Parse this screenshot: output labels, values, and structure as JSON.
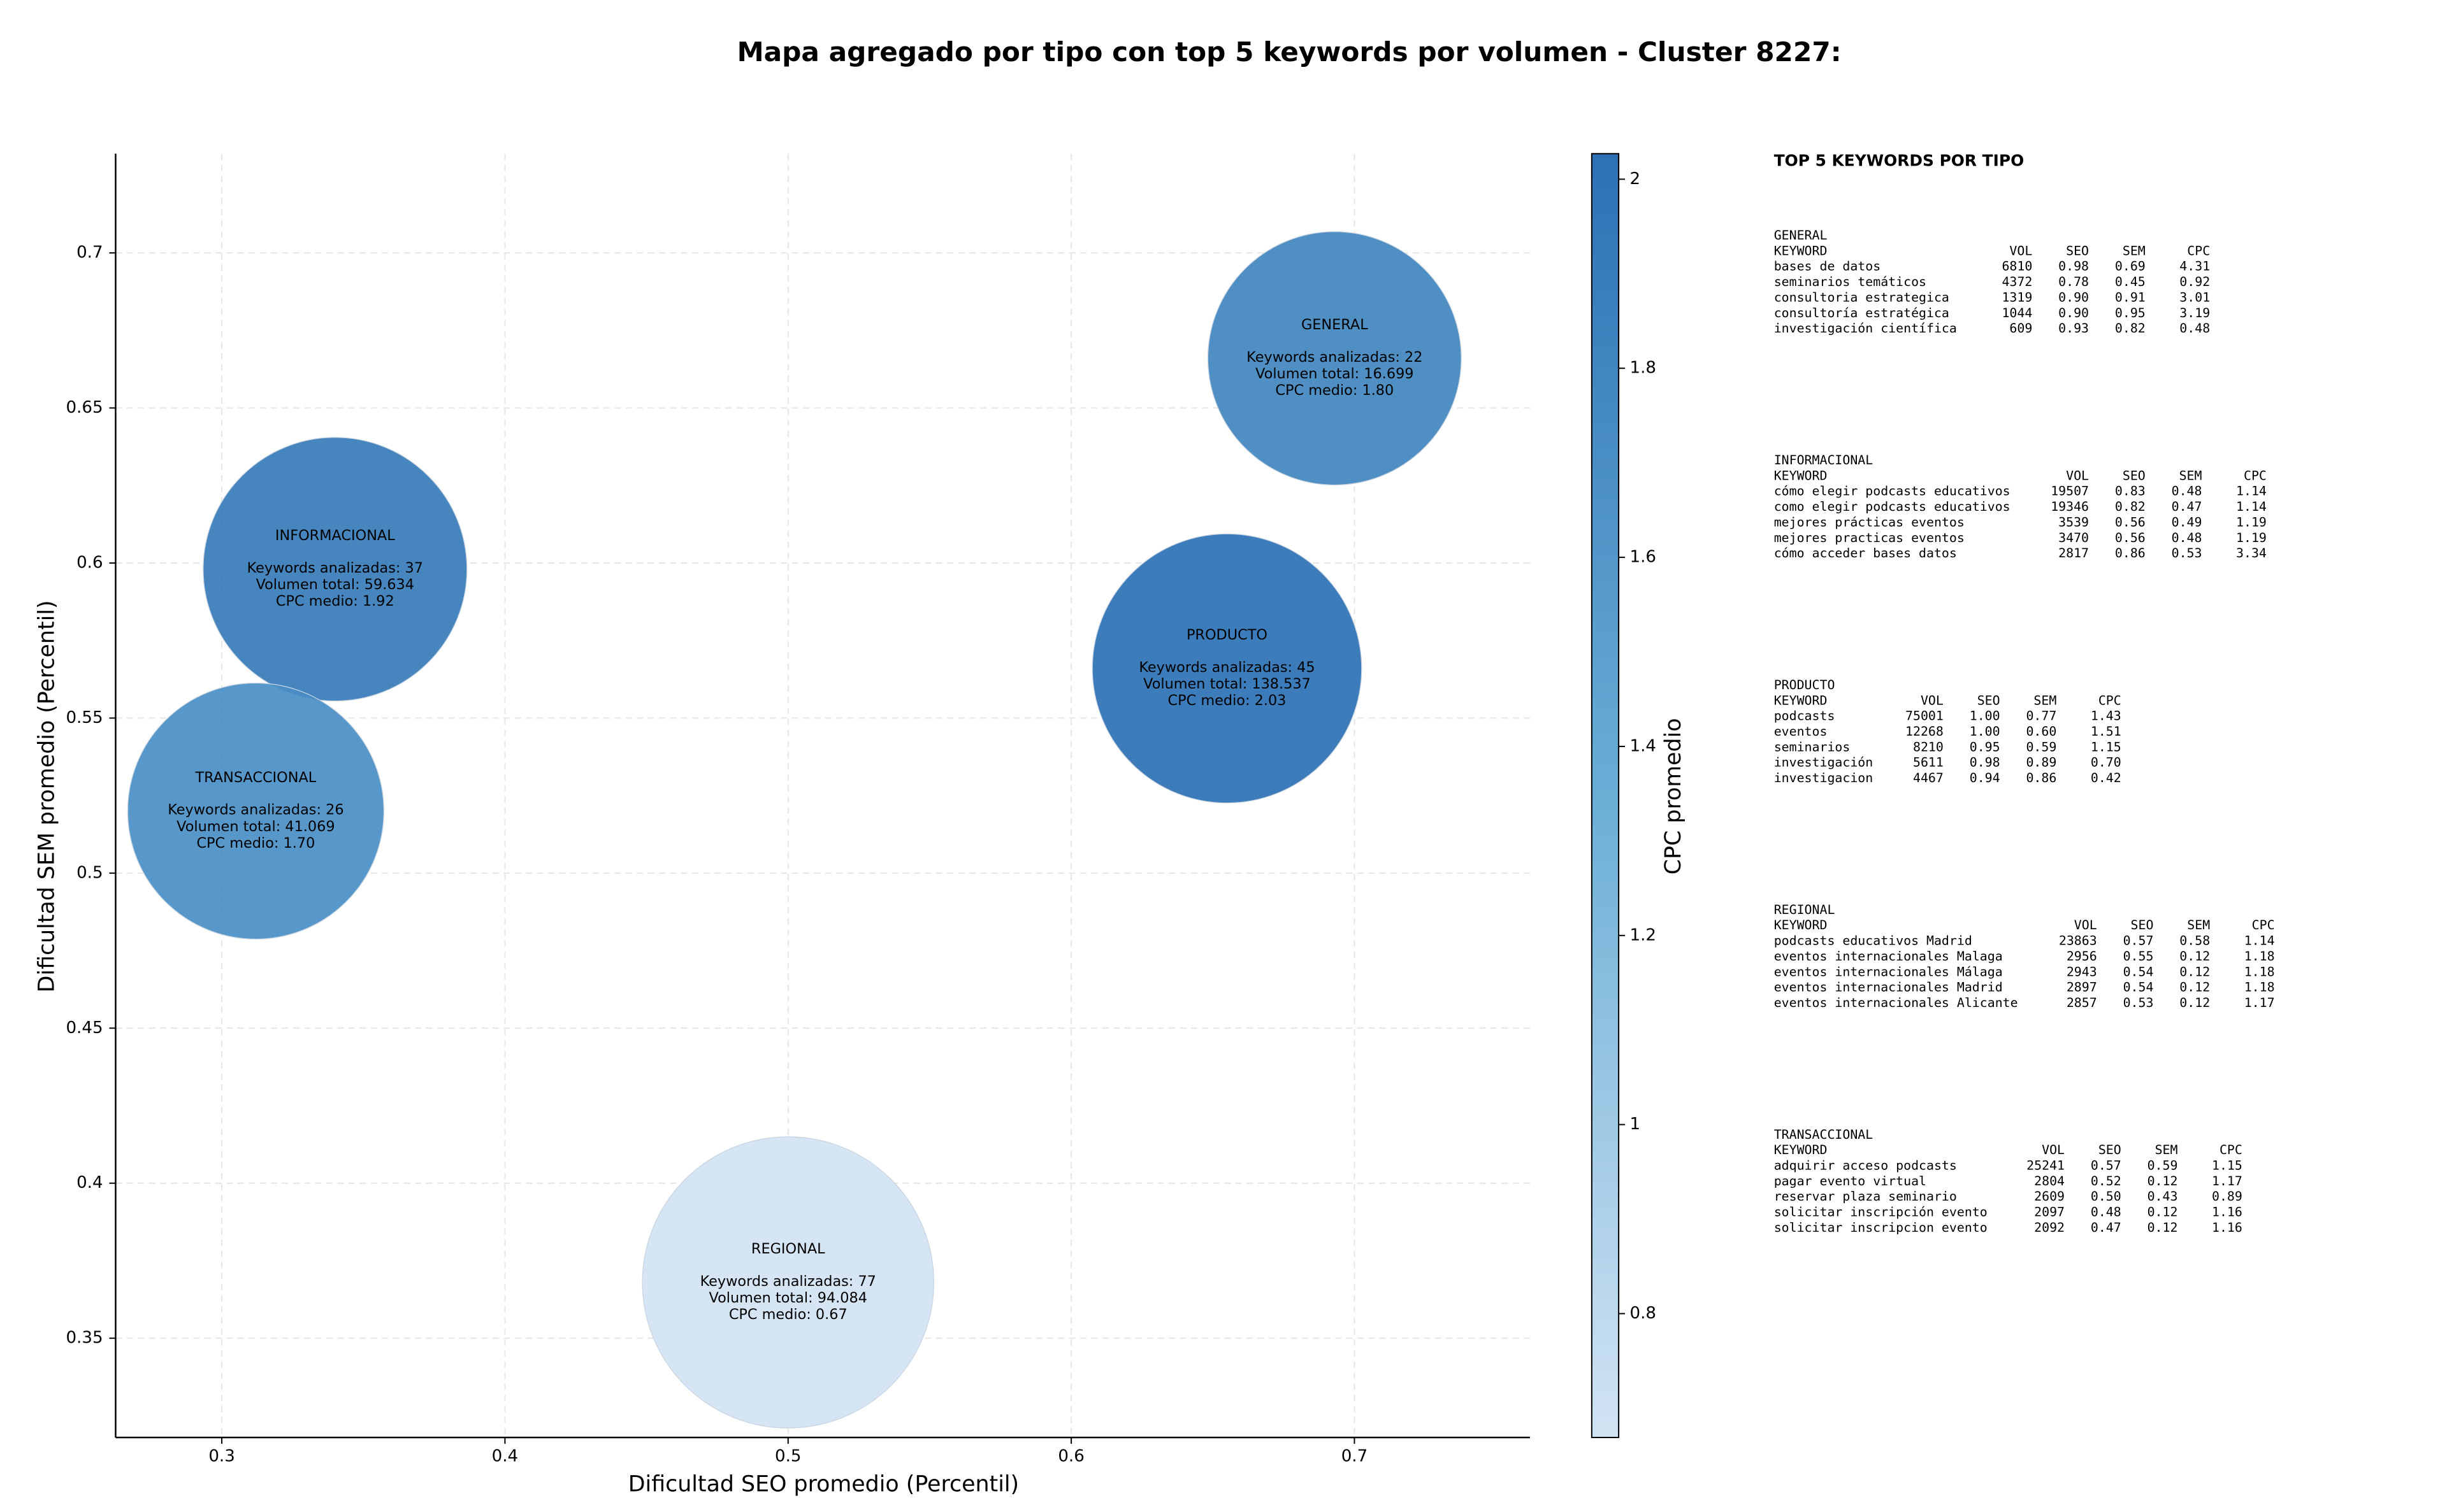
{
  "chart_data": {
    "type": "bubble",
    "title": "Mapa agregado por tipo con top 5 keywords por volumen - Cluster 8227:",
    "x_label": "Dificultad SEO promedio (Percentil)",
    "y_label": "Dificultad SEM promedio (Percentil)",
    "labels": [
      "GENERAL",
      "INFORMACIONAL",
      "PRODUCTO",
      "TRANSACCIONAL",
      "REGIONAL"
    ],
    "x": [
      0.693,
      0.34,
      0.655,
      0.312,
      0.5
    ],
    "values": [
      0.666,
      0.598,
      0.566,
      0.52,
      0.368
    ],
    "sizes": [
      22,
      37,
      45,
      26,
      77
    ],
    "color_values": [
      1.8,
      1.92,
      2.03,
      1.7,
      0.67
    ],
    "annotations": [
      [
        "Keywords analizadas: 22",
        "Volumen total: 16.699",
        "CPC medio: 1.80"
      ],
      [
        "Keywords analizadas: 37",
        "Volumen total: 59.634",
        "CPC medio: 1.92"
      ],
      [
        "Keywords analizadas: 45",
        "Volumen total: 138.537",
        "CPC medio: 2.03"
      ],
      [
        "Keywords analizadas: 26",
        "Volumen total: 41.069",
        "CPC medio: 1.70"
      ],
      [
        "Keywords analizadas: 77",
        "Volumen total: 94.084",
        "CPC medio: 0.67"
      ]
    ],
    "xlim": [
      0.2625,
      0.762
    ],
    "xticks": [
      0.3,
      0.4,
      0.5,
      0.6,
      0.7
    ],
    "ylim": [
      0.318,
      0.732
    ],
    "yticks": [
      0.35,
      0.4,
      0.45,
      0.5,
      0.55,
      0.6,
      0.65,
      0.7
    ],
    "grid": true,
    "colorbar": {
      "label": "CPC promedio",
      "lim": [
        0.669,
        2.027
      ],
      "ticks": [
        0.8,
        1.0,
        1.2,
        1.4,
        1.6,
        1.8,
        2.0
      ],
      "colors": [
        "#d2e3f3",
        "#6aaed6",
        "#2c71b4"
      ]
    }
  },
  "keyword_panel": {
    "title": "TOP 5 KEYWORDS POR TIPO",
    "columns": [
      "KEYWORD",
      "VOL",
      "SEO",
      "SEM",
      "CPC"
    ],
    "groups": [
      {
        "name": "GENERAL",
        "rows": [
          [
            "bases de datos",
            "6810",
            "0.98",
            "0.69",
            "4.31"
          ],
          [
            "seminarios temáticos",
            "4372",
            "0.78",
            "0.45",
            "0.92"
          ],
          [
            "consultoria estrategica",
            "1319",
            "0.90",
            "0.91",
            "3.01"
          ],
          [
            "consultoría estratégica",
            "1044",
            "0.90",
            "0.95",
            "3.19"
          ],
          [
            "investigación científica",
            "609",
            "0.93",
            "0.82",
            "0.48"
          ]
        ]
      },
      {
        "name": "INFORMACIONAL",
        "rows": [
          [
            "cómo elegir podcasts educativos",
            "19507",
            "0.83",
            "0.48",
            "1.14"
          ],
          [
            "como elegir podcasts educativos",
            "19346",
            "0.82",
            "0.47",
            "1.14"
          ],
          [
            "mejores prácticas eventos",
            "3539",
            "0.56",
            "0.49",
            "1.19"
          ],
          [
            "mejores practicas eventos",
            "3470",
            "0.56",
            "0.48",
            "1.19"
          ],
          [
            "cómo acceder bases datos",
            "2817",
            "0.86",
            "0.53",
            "3.34"
          ]
        ]
      },
      {
        "name": "PRODUCTO",
        "rows": [
          [
            "podcasts",
            "75001",
            "1.00",
            "0.77",
            "1.43"
          ],
          [
            "eventos",
            "12268",
            "1.00",
            "0.60",
            "1.51"
          ],
          [
            "seminarios",
            "8210",
            "0.95",
            "0.59",
            "1.15"
          ],
          [
            "investigación",
            "5611",
            "0.98",
            "0.89",
            "0.70"
          ],
          [
            "investigacion",
            "4467",
            "0.94",
            "0.86",
            "0.42"
          ]
        ]
      },
      {
        "name": "REGIONAL",
        "rows": [
          [
            "podcasts educativos Madrid",
            "23863",
            "0.57",
            "0.58",
            "1.14"
          ],
          [
            "eventos internacionales Malaga",
            "2956",
            "0.55",
            "0.12",
            "1.18"
          ],
          [
            "eventos internacionales Málaga",
            "2943",
            "0.54",
            "0.12",
            "1.18"
          ],
          [
            "eventos internacionales Madrid",
            "2897",
            "0.54",
            "0.12",
            "1.18"
          ],
          [
            "eventos internacionales Alicante",
            "2857",
            "0.53",
            "0.12",
            "1.17"
          ]
        ]
      },
      {
        "name": "TRANSACCIONAL",
        "rows": [
          [
            "adquirir acceso podcasts",
            "25241",
            "0.57",
            "0.59",
            "1.15"
          ],
          [
            "pagar evento virtual",
            "2804",
            "0.52",
            "0.12",
            "1.17"
          ],
          [
            "reservar plaza seminario",
            "2609",
            "0.50",
            "0.43",
            "0.89"
          ],
          [
            "solicitar inscripción evento",
            "2097",
            "0.48",
            "0.12",
            "1.16"
          ],
          [
            "solicitar inscripcion evento",
            "2092",
            "0.47",
            "0.12",
            "1.16"
          ]
        ]
      }
    ]
  }
}
